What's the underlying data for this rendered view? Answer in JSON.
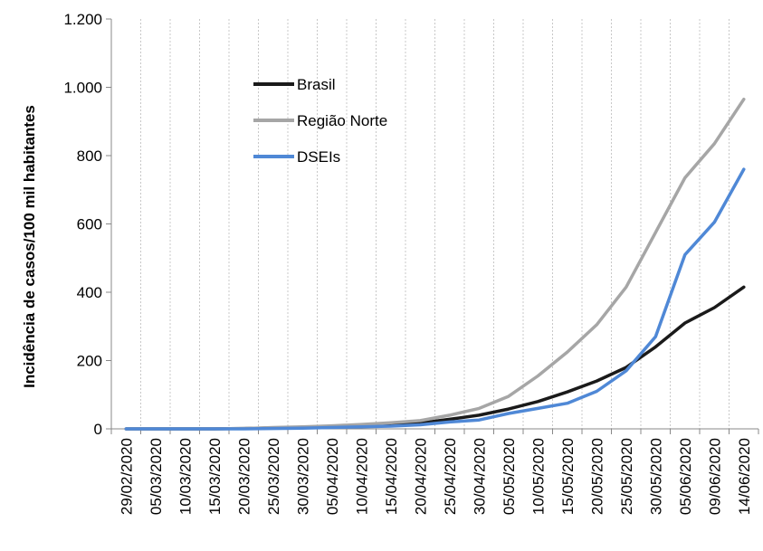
{
  "chart_data": {
    "type": "line",
    "ylabel": "Incidência de casos/100 mil habitantes",
    "xlabel": "",
    "ylim": [
      0,
      1200
    ],
    "yticks": [
      0,
      200,
      400,
      600,
      800,
      1000,
      1200
    ],
    "ytick_labels": [
      "0",
      "200",
      "400",
      "600",
      "800",
      "1.000",
      "1.200"
    ],
    "grid": "vertical dotted",
    "legend_position": "top-left",
    "categories": [
      "29/02/2020",
      "05/03/2020",
      "10/03/2020",
      "15/03/2020",
      "20/03/2020",
      "25/03/2020",
      "30/03/2020",
      "05/04/2020",
      "10/04/2020",
      "15/04/2020",
      "20/04/2020",
      "25/04/2020",
      "30/04/2020",
      "05/05/2020",
      "10/05/2020",
      "15/05/2020",
      "20/05/2020",
      "25/05/2020",
      "30/05/2020",
      "05/06/2020",
      "09/06/2020",
      "14/06/2020"
    ],
    "series": [
      {
        "name": "Brasil",
        "color": "#1a1a1a",
        "values": [
          0,
          0,
          0,
          0,
          1,
          3,
          5,
          7,
          10,
          13,
          17,
          28,
          40,
          58,
          80,
          108,
          140,
          180,
          240,
          310,
          355,
          415
        ]
      },
      {
        "name": "Região Norte",
        "color": "#a6a6a6",
        "values": [
          0,
          0,
          0,
          0,
          1,
          4,
          6,
          9,
          13,
          18,
          24,
          40,
          60,
          95,
          155,
          225,
          305,
          415,
          575,
          735,
          835,
          965
        ]
      },
      {
        "name": "DSEIs",
        "color": "#4f88d6",
        "values": [
          0,
          0,
          0,
          0,
          0,
          1,
          2,
          4,
          6,
          8,
          12,
          20,
          26,
          45,
          60,
          75,
          110,
          170,
          270,
          510,
          605,
          760
        ]
      }
    ]
  }
}
